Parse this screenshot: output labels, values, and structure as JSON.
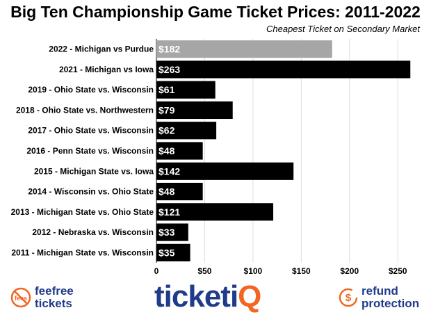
{
  "chart_data": {
    "type": "bar",
    "orientation": "horizontal",
    "title": "Big Ten Championship Game Ticket Prices: 2011-2022",
    "subtitle": "Cheapest Ticket on Secondary Market",
    "categories": [
      "2022 - Michigan vs Purdue",
      "2021 - Michigan vs Iowa",
      "2019 - Ohio State vs. Wisconsin",
      "2018 - Ohio State vs. Northwestern",
      "2017 - Ohio State vs. Wisconsin",
      "2016 - Penn State vs. Wisconsin",
      "2015 - Michigan State vs. Iowa",
      "2014 - Wisconsin vs. Ohio State",
      "2013 - Michigan State vs. Ohio State",
      "2012 - Nebraska vs. Wisconsin",
      "2011 - Michigan State vs. Wisconsin"
    ],
    "values": [
      182,
      263,
      61,
      79,
      62,
      48,
      142,
      48,
      121,
      33,
      35
    ],
    "data_labels": [
      "$182",
      "$263",
      "$61",
      "$79",
      "$62",
      "$48",
      "$142",
      "$48",
      "$121",
      "$33",
      "$35"
    ],
    "bar_colors": [
      "#a6a6a6",
      "#000000",
      "#000000",
      "#000000",
      "#000000",
      "#000000",
      "#000000",
      "#000000",
      "#000000",
      "#000000",
      "#000000"
    ],
    "xlim": [
      0,
      270
    ],
    "xticks": [
      0,
      50,
      100,
      150,
      200,
      250
    ],
    "xtick_labels": [
      "0",
      "$50",
      "$100",
      "$150",
      "$200",
      "$250"
    ],
    "grid": true,
    "xlabel": "",
    "ylabel": ""
  },
  "branding": {
    "fee_label_1": "feefree",
    "fee_label_2": "tickets",
    "fee_badge": "fees",
    "tiq_main": "ticketi",
    "tiq_accent": "Q",
    "refund_label_1": "refund",
    "refund_label_2": "protection",
    "refund_symbol": "$",
    "colors": {
      "navy": "#1f3b8a",
      "orange": "#f26522"
    }
  }
}
